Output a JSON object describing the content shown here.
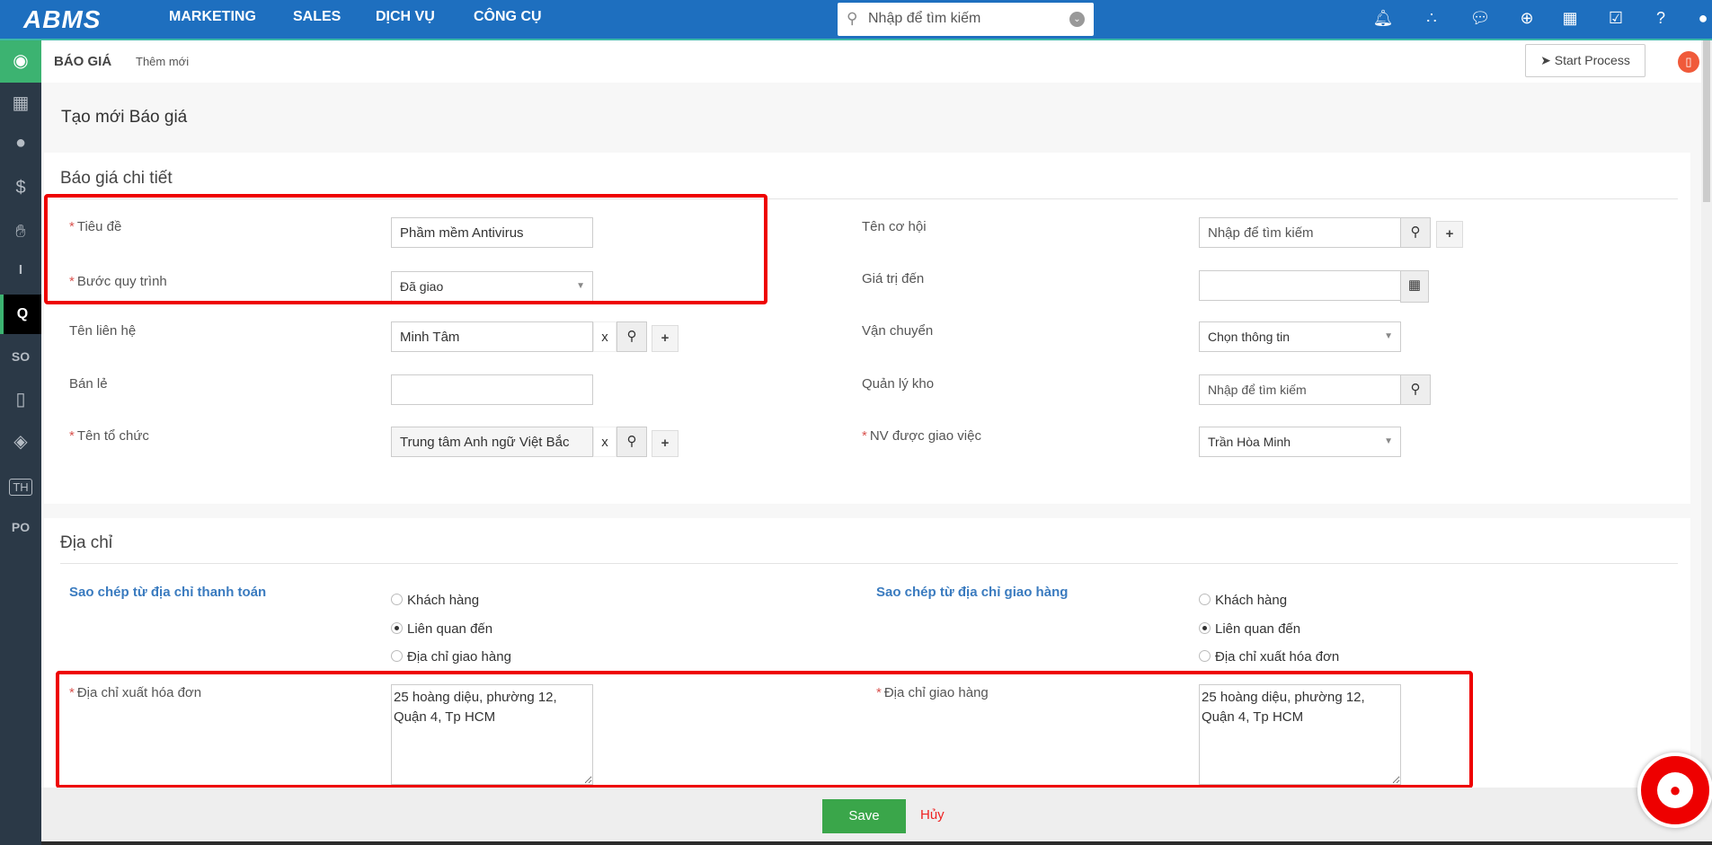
{
  "topbar": {
    "logo": "ABMS",
    "nav": [
      "MARKETING",
      "SALES",
      "DỊCH VỤ",
      "CÔNG CỤ"
    ],
    "search_placeholder": "Nhập để tìm kiếm",
    "icons": [
      "bell-icon",
      "cubes-icon",
      "comments-icon",
      "plus-circle-icon",
      "calendar-icon",
      "checkbox-icon",
      "help-icon",
      "user-icon"
    ]
  },
  "sidebar": {
    "items": [
      "target-icon",
      "building-icon",
      "person-icon",
      "money-bag-icon",
      "hand-wrench-icon",
      "invoice-icon",
      "quote-icon",
      "sales-order-icon",
      "mobile-chat-icon",
      "box-icon",
      "th-icon",
      "purchase-order-icon"
    ],
    "th_label": "TH",
    "so_label": "SO",
    "po_label": "PO",
    "q_label": "Q",
    "i_label": "I"
  },
  "subheader": {
    "module": "BÁO GIÁ",
    "action": "Thêm mới",
    "start_process": "Start Process"
  },
  "page_title": "Tạo mới Báo giá",
  "details": {
    "title": "Báo giá chi tiết",
    "tieu_de": {
      "label": "Tiêu đề",
      "value": "Phầm mềm Antivirus"
    },
    "buoc_quy_trinh": {
      "label": "Bước quy trình",
      "value": "Đã giao"
    },
    "ten_lien_he": {
      "label": "Tên liên hệ",
      "value": "Minh Tâm",
      "clear": "x"
    },
    "ban_le": {
      "label": "Bán lẻ",
      "value": ""
    },
    "ten_to_chuc": {
      "label": "Tên tổ chức",
      "value": "Trung tâm Anh ngữ Việt Bắc",
      "clear": "x"
    },
    "ten_co_hoi": {
      "label": "Tên cơ hội",
      "placeholder": "Nhập để tìm kiếm"
    },
    "gia_tri_den": {
      "label": "Giá trị đến",
      "value": ""
    },
    "van_chuyen": {
      "label": "Vận chuyển",
      "value": "Chọn thông tin"
    },
    "quan_ly_kho": {
      "label": "Quản lý kho",
      "placeholder": "Nhập để tìm kiếm"
    },
    "nv_giao_viec": {
      "label": "NV được giao việc",
      "value": "Trần Hòa Minh"
    }
  },
  "address": {
    "title": "Địa chỉ",
    "copy_billing": "Sao chép từ địa chỉ thanh toán",
    "copy_shipping": "Sao chép từ địa chỉ giao hàng",
    "billing_options": [
      {
        "label": "Khách hàng",
        "checked": false
      },
      {
        "label": "Liên quan đến",
        "checked": true
      },
      {
        "label": "Địa chỉ giao hàng",
        "checked": false
      }
    ],
    "shipping_options": [
      {
        "label": "Khách hàng",
        "checked": false
      },
      {
        "label": "Liên quan đến",
        "checked": true
      },
      {
        "label": "Địa chỉ xuất hóa đơn",
        "checked": false
      }
    ],
    "billing_label": "Địa chỉ xuất hóa đơn",
    "billing_value": "25 hoàng diệu, phường 12, Quận 4, Tp HCM",
    "shipping_label": "Địa chỉ giao hàng",
    "shipping_value": "25 hoàng diệu, phường 12, Quận 4, Tp HCM"
  },
  "footer": {
    "save": "Save",
    "cancel": "Hủy"
  },
  "colors": {
    "topbar": "#1e6fbf",
    "sidebar": "#2b3947",
    "accent_green": "#3cb371",
    "save": "#3aa64a",
    "highlight": "#ee0000"
  }
}
